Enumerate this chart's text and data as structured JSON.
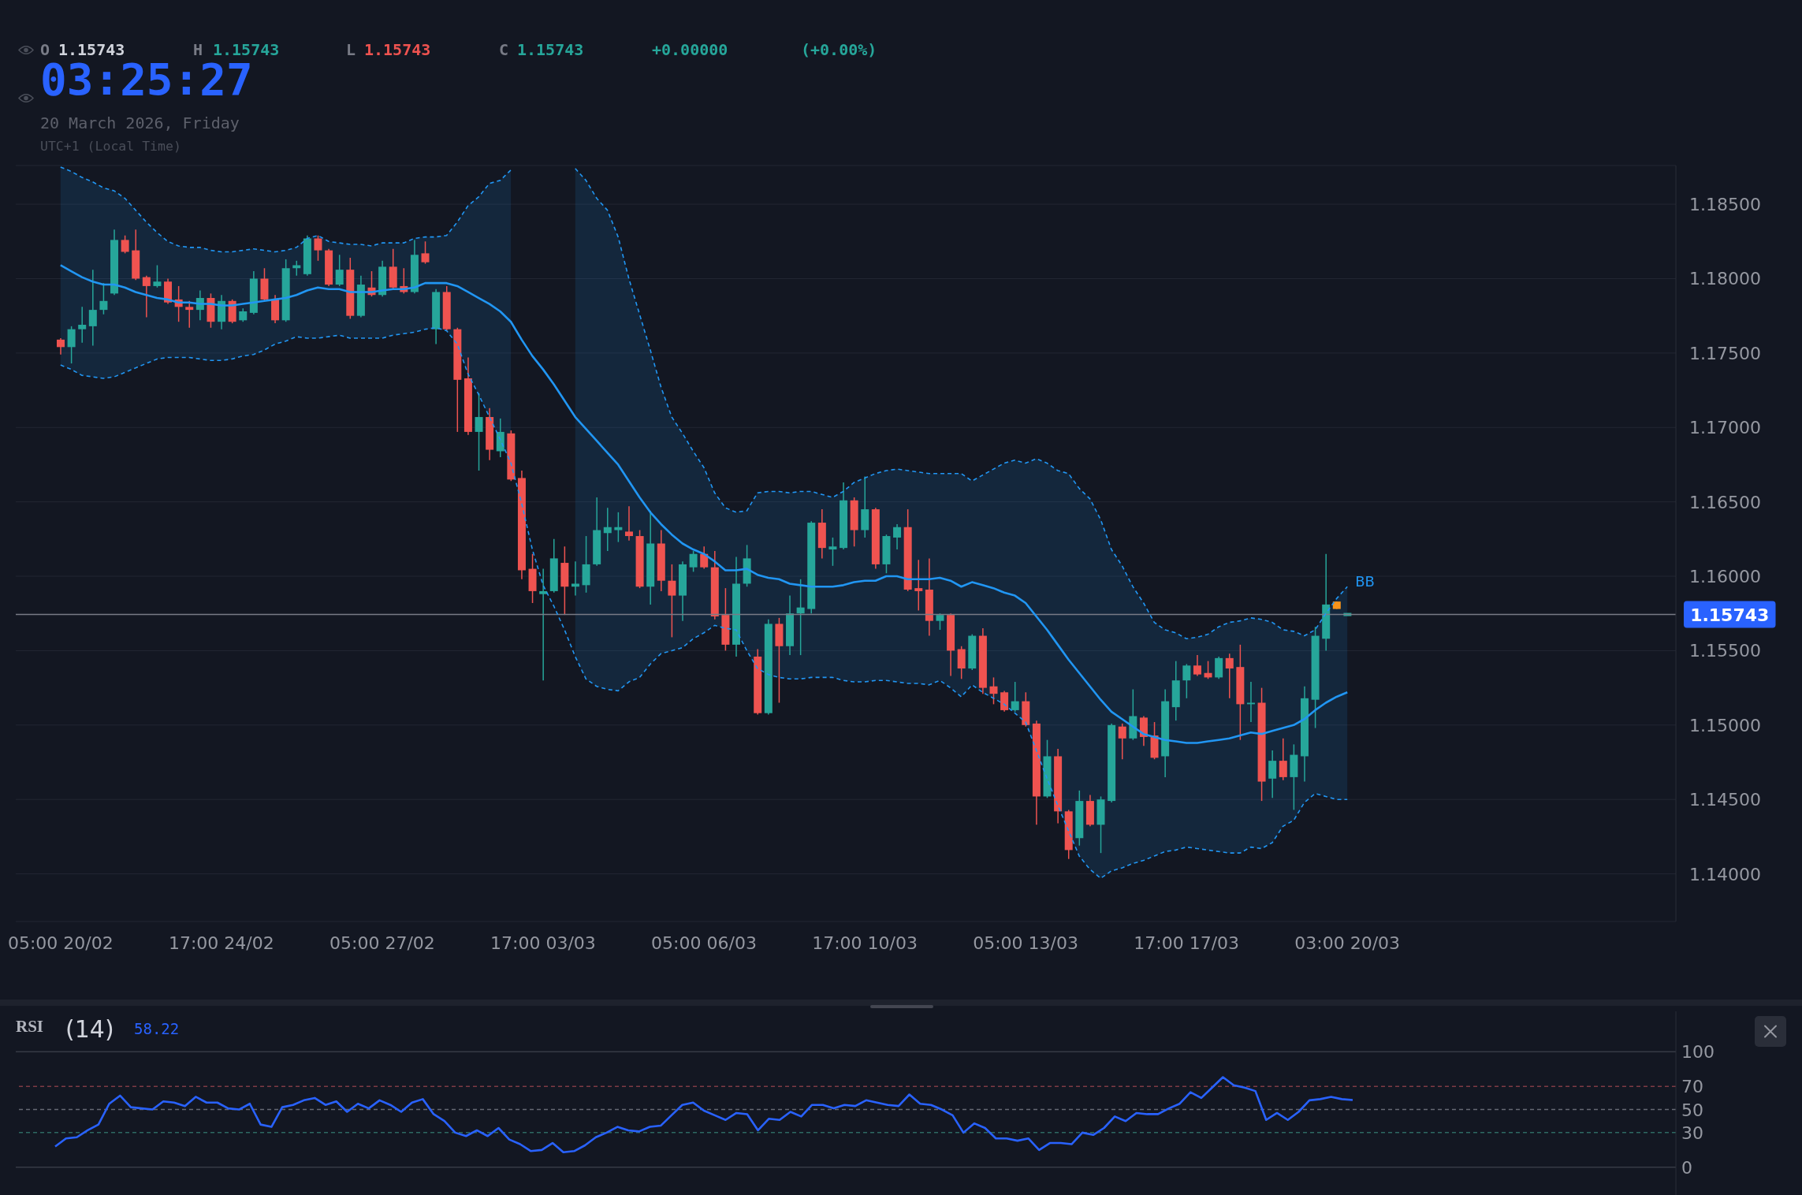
{
  "chart_data": [
    {
      "type": "candlestick",
      "categories": [
        "05:00 20/02",
        null,
        null,
        null,
        null,
        null,
        null,
        null,
        null,
        null,
        null,
        null,
        null,
        null,
        null,
        "17:00 24/02",
        null,
        null,
        null,
        null,
        null,
        null,
        null,
        null,
        null,
        null,
        null,
        null,
        null,
        null,
        "05:00 27/02",
        null,
        null,
        null,
        null,
        null,
        null,
        null,
        null,
        null,
        null,
        null,
        null,
        null,
        null,
        "17:00 03/03",
        null,
        null,
        null,
        null,
        null,
        null,
        null,
        null,
        null,
        null,
        null,
        null,
        null,
        null,
        "05:00 06/03",
        null,
        null,
        null,
        null,
        null,
        null,
        null,
        null,
        null,
        null,
        null,
        null,
        null,
        null,
        "17:00 10/03",
        null,
        null,
        null,
        null,
        null,
        null,
        null,
        null,
        null,
        null,
        null,
        null,
        null,
        null,
        "05:00 13/03",
        null,
        null,
        null,
        null,
        null,
        null,
        null,
        null,
        null,
        null,
        null,
        null,
        null,
        null,
        "17:00 17/03",
        null,
        null,
        null,
        null,
        null,
        null,
        null,
        null,
        null,
        null,
        null,
        null,
        null,
        null,
        "03:00 20/03"
      ],
      "ohlc": [
        [
          1.1759,
          1.176,
          1.1749,
          1.1754
        ],
        [
          1.1754,
          1.1768,
          1.1743,
          1.1766
        ],
        [
          1.1766,
          1.1781,
          1.1757,
          1.1769
        ],
        [
          1.1768,
          1.1806,
          1.1755,
          1.1779
        ],
        [
          1.1779,
          1.1797,
          1.1776,
          1.1785
        ],
        [
          1.179,
          1.1833,
          1.1789,
          1.1826
        ],
        [
          1.1826,
          1.1829,
          1.1817,
          1.1818
        ],
        [
          1.1819,
          1.1833,
          1.1799,
          1.18
        ],
        [
          1.1801,
          1.1802,
          1.1774,
          1.1795
        ],
        [
          1.1795,
          1.1809,
          1.1794,
          1.1798
        ],
        [
          1.1798,
          1.18,
          1.1783,
          1.1784
        ],
        [
          1.1786,
          1.1795,
          1.1771,
          1.1781
        ],
        [
          1.1781,
          1.1785,
          1.1767,
          1.1779
        ],
        [
          1.1779,
          1.1792,
          1.1772,
          1.1787
        ],
        [
          1.1787,
          1.179,
          1.1767,
          1.1771
        ],
        [
          1.1771,
          1.1789,
          1.1766,
          1.1785
        ],
        [
          1.1785,
          1.1786,
          1.177,
          1.1771
        ],
        [
          1.1772,
          1.178,
          1.1771,
          1.1778
        ],
        [
          1.1777,
          1.1805,
          1.1776,
          1.18
        ],
        [
          1.18,
          1.1807,
          1.1785,
          1.1786
        ],
        [
          1.1786,
          1.1789,
          1.177,
          1.1772
        ],
        [
          1.1772,
          1.1813,
          1.1771,
          1.1807
        ],
        [
          1.1807,
          1.1812,
          1.1802,
          1.1809
        ],
        [
          1.1803,
          1.1829,
          1.1802,
          1.1827
        ],
        [
          1.1827,
          1.1829,
          1.1812,
          1.1819
        ],
        [
          1.1819,
          1.182,
          1.1795,
          1.1796
        ],
        [
          1.1796,
          1.1816,
          1.1795,
          1.1806
        ],
        [
          1.1806,
          1.1814,
          1.1773,
          1.1775
        ],
        [
          1.1775,
          1.1802,
          1.1774,
          1.1796
        ],
        [
          1.1794,
          1.1805,
          1.1788,
          1.1789
        ],
        [
          1.1789,
          1.1812,
          1.1788,
          1.1808
        ],
        [
          1.1808,
          1.182,
          1.1793,
          1.1794
        ],
        [
          1.1795,
          1.1807,
          1.179,
          1.1791
        ],
        [
          1.1791,
          1.1826,
          1.179,
          1.1816
        ],
        [
          1.1817,
          1.1825,
          1.181,
          1.1811
        ],
        [
          1.1766,
          1.1793,
          1.1756,
          1.1791
        ],
        [
          1.1791,
          1.1795,
          1.1765,
          1.1766
        ],
        [
          1.1766,
          1.1767,
          1.1697,
          1.1732
        ],
        [
          1.1733,
          1.1747,
          1.1695,
          1.1697
        ],
        [
          1.1697,
          1.1723,
          1.1671,
          1.1707
        ],
        [
          1.1707,
          1.1713,
          1.1678,
          1.1685
        ],
        [
          1.1684,
          1.1706,
          1.168,
          1.1697
        ],
        [
          1.1696,
          1.1698,
          1.1664,
          1.1665
        ],
        [
          1.1666,
          1.1671,
          1.1598,
          1.1604
        ],
        [
          1.1605,
          1.1615,
          1.1582,
          1.159
        ],
        [
          1.1588,
          1.1605,
          1.153,
          1.159
        ],
        [
          1.159,
          1.1625,
          1.1589,
          1.1612
        ],
        [
          1.1609,
          1.162,
          1.1574,
          1.1593
        ],
        [
          1.1593,
          1.161,
          1.1587,
          1.1595
        ],
        [
          1.1594,
          1.1627,
          1.1589,
          1.1608
        ],
        [
          1.1608,
          1.1653,
          1.1607,
          1.1631
        ],
        [
          1.1629,
          1.1646,
          1.1617,
          1.1633
        ],
        [
          1.1631,
          1.1643,
          1.1623,
          1.1633
        ],
        [
          1.163,
          1.1647,
          1.1624,
          1.1627
        ],
        [
          1.1627,
          1.1631,
          1.1592,
          1.1593
        ],
        [
          1.1593,
          1.1644,
          1.1581,
          1.1622
        ],
        [
          1.1622,
          1.1631,
          1.159,
          1.1597
        ],
        [
          1.1597,
          1.1608,
          1.1559,
          1.1587
        ],
        [
          1.1587,
          1.161,
          1.157,
          1.1608
        ],
        [
          1.1606,
          1.1617,
          1.1603,
          1.1615
        ],
        [
          1.1615,
          1.162,
          1.1605,
          1.1606
        ],
        [
          1.1606,
          1.1617,
          1.1571,
          1.1573
        ],
        [
          1.1574,
          1.1592,
          1.155,
          1.1554
        ],
        [
          1.1554,
          1.1613,
          1.1546,
          1.1595
        ],
        [
          1.1595,
          1.1621,
          1.1593,
          1.1612
        ],
        [
          1.1546,
          1.1551,
          1.1507,
          1.1508
        ],
        [
          1.1508,
          1.1571,
          1.1507,
          1.1568
        ],
        [
          1.1568,
          1.1572,
          1.1515,
          1.1553
        ],
        [
          1.1553,
          1.1587,
          1.1547,
          1.1575
        ],
        [
          1.1575,
          1.1598,
          1.1547,
          1.1579
        ],
        [
          1.1578,
          1.1637,
          1.1575,
          1.1636
        ],
        [
          1.1636,
          1.1645,
          1.1612,
          1.1619
        ],
        [
          1.1618,
          1.1626,
          1.1607,
          1.162
        ],
        [
          1.1619,
          1.1663,
          1.1618,
          1.1651
        ],
        [
          1.1651,
          1.1653,
          1.162,
          1.1631
        ],
        [
          1.1631,
          1.1667,
          1.1626,
          1.1645
        ],
        [
          1.1645,
          1.1646,
          1.1605,
          1.1608
        ],
        [
          1.1608,
          1.1628,
          1.1602,
          1.1627
        ],
        [
          1.1626,
          1.1635,
          1.1618,
          1.1633
        ],
        [
          1.1633,
          1.1645,
          1.159,
          1.1591
        ],
        [
          1.1592,
          1.1611,
          1.1577,
          1.159
        ],
        [
          1.1591,
          1.1612,
          1.156,
          1.157
        ],
        [
          1.157,
          1.1575,
          1.1564,
          1.1574
        ],
        [
          1.1574,
          1.1575,
          1.1533,
          1.155
        ],
        [
          1.1551,
          1.1553,
          1.1531,
          1.1538
        ],
        [
          1.1538,
          1.1561,
          1.1537,
          1.156
        ],
        [
          1.156,
          1.1565,
          1.1521,
          1.1525
        ],
        [
          1.1526,
          1.1532,
          1.1514,
          1.1521
        ],
        [
          1.1522,
          1.1523,
          1.1509,
          1.151
        ],
        [
          1.151,
          1.1529,
          1.1509,
          1.1516
        ],
        [
          1.1516,
          1.1522,
          1.1499,
          1.15
        ],
        [
          1.1501,
          1.1503,
          1.1433,
          1.1452
        ],
        [
          1.1452,
          1.149,
          1.1451,
          1.1479
        ],
        [
          1.1479,
          1.1484,
          1.1434,
          1.1442
        ],
        [
          1.1442,
          1.1443,
          1.141,
          1.1416
        ],
        [
          1.1424,
          1.1456,
          1.1419,
          1.1449
        ],
        [
          1.1449,
          1.1453,
          1.1432,
          1.1433
        ],
        [
          1.1433,
          1.1452,
          1.1414,
          1.145
        ],
        [
          1.1449,
          1.1501,
          1.1448,
          1.15
        ],
        [
          1.1499,
          1.1501,
          1.1477,
          1.1491
        ],
        [
          1.1491,
          1.1524,
          1.149,
          1.1506
        ],
        [
          1.1505,
          1.1506,
          1.1486,
          1.1492
        ],
        [
          1.1493,
          1.1502,
          1.1477,
          1.1478
        ],
        [
          1.1479,
          1.1524,
          1.1465,
          1.1516
        ],
        [
          1.1512,
          1.1543,
          1.1503,
          1.153
        ],
        [
          1.153,
          1.1541,
          1.1518,
          1.154
        ],
        [
          1.154,
          1.1547,
          1.1533,
          1.1534
        ],
        [
          1.1535,
          1.1543,
          1.1531,
          1.1532
        ],
        [
          1.1532,
          1.1546,
          1.1531,
          1.1545
        ],
        [
          1.1545,
          1.1548,
          1.1518,
          1.1538
        ],
        [
          1.1539,
          1.1554,
          1.149,
          1.1514
        ],
        [
          1.1514,
          1.1529,
          1.1502,
          1.1515
        ],
        [
          1.1515,
          1.1525,
          1.1449,
          1.1462
        ],
        [
          1.1464,
          1.1483,
          1.1451,
          1.1476
        ],
        [
          1.1476,
          1.1491,
          1.1463,
          1.1465
        ],
        [
          1.1465,
          1.1487,
          1.1443,
          1.148
        ],
        [
          1.1479,
          1.1526,
          1.1462,
          1.1518
        ],
        [
          1.1517,
          1.1566,
          1.1498,
          1.156
        ],
        [
          1.1558,
          1.1615,
          1.155,
          1.1581
        ],
        [
          1.1583,
          1.1583,
          1.1578,
          1.1578
        ],
        [
          1.15743,
          1.15743,
          1.15743,
          1.15743
        ]
      ],
      "colors": [
        "#ef5350",
        "#26a69a",
        "#26a69a",
        "#26a69a",
        "#26a69a",
        "#26a69a",
        "#ef5350",
        "#ef5350",
        "#ef5350",
        "#26a69a",
        "#ef5350",
        "#ef5350",
        "#ef5350",
        "#26a69a",
        "#ef5350",
        "#26a69a",
        "#ef5350",
        "#26a69a",
        "#26a69a",
        "#ef5350",
        "#ef5350",
        "#26a69a",
        "#26a69a",
        "#26a69a",
        "#ef5350",
        "#ef5350",
        "#26a69a",
        "#ef5350",
        "#26a69a",
        "#ef5350",
        "#26a69a",
        "#ef5350",
        "#ef5350",
        "#26a69a",
        "#ef5350",
        "#26a69a",
        "#ef5350",
        "#ef5350",
        "#ef5350",
        "#26a69a",
        "#ef5350",
        "#26a69a",
        "#ef5350",
        "#ef5350",
        "#ef5350",
        "#26a69a",
        "#26a69a",
        "#ef5350",
        "#26a69a",
        "#26a69a",
        "#26a69a",
        "#26a69a",
        "#26a69a",
        "#ef5350",
        "#ef5350",
        "#26a69a",
        "#ef5350",
        "#ef5350",
        "#26a69a",
        "#26a69a",
        "#ef5350",
        "#ef5350",
        "#ef5350",
        "#26a69a",
        "#26a69a",
        "#ef5350",
        "#26a69a",
        "#ef5350",
        "#26a69a",
        "#26a69a",
        "#26a69a",
        "#ef5350",
        "#26a69a",
        "#26a69a",
        "#ef5350",
        "#26a69a",
        "#ef5350",
        "#26a69a",
        "#26a69a",
        "#ef5350",
        "#ef5350",
        "#ef5350",
        "#26a69a",
        "#ef5350",
        "#ef5350",
        "#26a69a",
        "#ef5350",
        "#ef5350",
        "#ef5350",
        "#26a69a",
        "#ef5350",
        "#ef5350",
        "#26a69a",
        "#ef5350",
        "#ef5350",
        "#26a69a",
        "#ef5350",
        "#26a69a",
        "#26a69a",
        "#ef5350",
        "#26a69a",
        "#ef5350",
        "#ef5350",
        "#26a69a",
        "#26a69a",
        "#26a69a",
        "#ef5350",
        "#ef5350",
        "#26a69a",
        "#ef5350",
        "#ef5350",
        "#26a69a",
        "#ef5350",
        "#26a69a",
        "#ef5350",
        "#26a69a",
        "#26a69a",
        "#26a69a",
        "#26a69a",
        "#f7931a",
        "#26a69a"
      ],
      "series": [
        {
          "type": "line",
          "name": "BB",
          "color": "#2196f3",
          "values": [
            1.1809,
            1.1805,
            1.1801,
            1.1798,
            1.1796,
            1.1796,
            1.1794,
            1.1791,
            1.1789,
            1.1787,
            1.1786,
            1.1784,
            1.1784,
            1.1783,
            1.1783,
            1.1782,
            1.1782,
            1.1783,
            1.1784,
            1.1785,
            1.1786,
            1.1787,
            1.1789,
            1.1792,
            1.1794,
            1.1793,
            1.1793,
            1.1791,
            1.1791,
            1.1791,
            1.1792,
            1.1793,
            1.1793,
            1.1794,
            1.1797,
            1.1797,
            1.1797,
            1.1795,
            1.1791,
            1.1787,
            1.1783,
            1.1778,
            1.1771,
            1.1759,
            1.1748,
            1.1739,
            1.1729,
            1.1718,
            1.1707,
            1.1699,
            1.1691,
            1.1683,
            1.1675,
            1.1664,
            1.1653,
            1.1643,
            1.1635,
            1.1628,
            1.1622,
            1.1618,
            1.1615,
            1.161,
            1.1604,
            1.1604,
            1.1605,
            1.1601,
            1.1599,
            1.1598,
            1.1595,
            1.1594,
            1.1593,
            1.1593,
            1.1593,
            1.1594,
            1.1596,
            1.1597,
            1.1597,
            1.16,
            1.16,
            1.1598,
            1.1598,
            1.1598,
            1.1599,
            1.1597,
            1.1593,
            1.1596,
            1.1594,
            1.1592,
            1.1589,
            1.1587,
            1.1582,
            1.1573,
            1.1564,
            1.1554,
            1.1544,
            1.1535,
            1.1526,
            1.1517,
            1.1509,
            1.1504,
            1.1499,
            1.1494,
            1.1492,
            1.149,
            1.1489,
            1.1488,
            1.1488,
            1.1489,
            1.149,
            1.1491,
            1.1493,
            1.1495,
            1.1494,
            1.1496,
            1.1498,
            1.15,
            1.1504,
            1.151,
            1.1515,
            1.1519,
            1.1522
          ],
          "upper": [
            1.1875,
            1.1872,
            1.1868,
            1.1865,
            1.1861,
            1.1859,
            1.1854,
            1.1846,
            1.1838,
            1.1831,
            1.1825,
            1.1822,
            1.1821,
            1.1821,
            1.1819,
            1.1818,
            1.1818,
            1.1819,
            1.182,
            1.1819,
            1.1818,
            1.1819,
            1.1821,
            1.1827,
            1.1829,
            1.1825,
            1.1824,
            1.1823,
            1.1823,
            1.1822,
            1.1824,
            1.1824,
            1.1824,
            1.1827,
            1.1828,
            1.1828,
            1.1829,
            1.1838,
            1.1849,
            1.1855,
            1.1864,
            1.1866,
            1.1873,
            null,
            null,
            null,
            null,
            null,
            1.1874,
            1.1866,
            1.1854,
            1.1846,
            1.1828,
            1.18,
            1.1776,
            1.1752,
            1.1727,
            1.1707,
            1.1696,
            1.1684,
            1.1673,
            1.1656,
            1.1646,
            1.1643,
            1.1644,
            1.1656,
            1.1657,
            1.1657,
            1.1656,
            1.1657,
            1.1657,
            1.1655,
            1.1653,
            1.1657,
            1.1663,
            1.1666,
            1.1669,
            1.1671,
            1.1672,
            1.1671,
            1.167,
            1.1669,
            1.1669,
            1.1669,
            1.1669,
            1.1664,
            1.1668,
            1.1672,
            1.1676,
            1.1678,
            1.1676,
            1.1679,
            1.1676,
            1.1671,
            1.1669,
            1.1659,
            1.1652,
            1.1638,
            1.1618,
            1.1607,
            1.1593,
            1.1582,
            1.1569,
            1.1564,
            1.1562,
            1.1558,
            1.1559,
            1.1561,
            1.1566,
            1.1569,
            1.157,
            1.1572,
            1.1571,
            1.1569,
            1.1564,
            1.1563,
            1.156,
            1.1564,
            1.1575,
            1.1585,
            1.1593
          ],
          "lower": [
            1.1742,
            1.1739,
            1.1735,
            1.1734,
            1.1733,
            1.1734,
            1.1737,
            1.174,
            1.1743,
            1.1746,
            1.1747,
            1.1747,
            1.1747,
            1.1746,
            1.1745,
            1.1745,
            1.1746,
            1.1748,
            1.1749,
            1.1752,
            1.1756,
            1.1758,
            1.1761,
            1.176,
            1.176,
            1.1761,
            1.1762,
            1.176,
            1.176,
            1.176,
            1.176,
            1.1762,
            1.1763,
            1.1764,
            1.1766,
            1.1767,
            1.1765,
            1.1756,
            1.1736,
            1.1722,
            1.1707,
            1.1692,
            1.1676,
            null,
            null,
            null,
            null,
            null,
            1.1546,
            1.1531,
            1.1526,
            1.1524,
            1.1523,
            1.1529,
            1.1532,
            1.1541,
            1.1548,
            1.155,
            1.1552,
            1.1558,
            1.1562,
            1.1567,
            1.1565,
            1.1564,
            1.155,
            1.1538,
            1.1534,
            1.1532,
            1.1531,
            1.1531,
            1.1532,
            1.1532,
            1.1532,
            1.153,
            1.1529,
            1.1529,
            1.153,
            1.153,
            1.1529,
            1.1528,
            1.1528,
            1.1527,
            1.153,
            1.1525,
            1.1519,
            1.1527,
            1.1522,
            1.1518,
            1.1514,
            1.1508,
            1.1502,
            1.1483,
            1.1464,
            1.1446,
            1.1429,
            1.1412,
            1.1403,
            1.1397,
            1.1402,
            1.1404,
            1.1407,
            1.1409,
            1.1412,
            1.1415,
            1.1416,
            1.1418,
            1.1417,
            1.1416,
            1.1415,
            1.1414,
            1.1414,
            1.1418,
            1.1417,
            1.1421,
            1.1432,
            1.1436,
            1.1448,
            1.1454,
            1.1452,
            1.145,
            1.145
          ]
        },
        {
          "type": "line",
          "color": "#2196f3",
          "line_style": "dashed",
          "values": [
            1.1875,
            1.1872,
            1.1868,
            1.1865,
            1.1861,
            1.1859,
            1.1854,
            1.1846,
            1.1838,
            1.1831,
            1.1825,
            1.1822,
            1.1821,
            1.1821,
            1.1819,
            1.1818,
            1.1818,
            1.1819,
            1.182,
            1.1819,
            1.1818,
            1.1819,
            1.1821,
            1.1827,
            1.1829,
            1.1825,
            1.1824,
            1.1823,
            1.1823,
            1.1822,
            1.1824,
            1.1824,
            1.1824,
            1.1827,
            1.1828,
            1.1828,
            1.1829,
            1.1838,
            1.1849,
            1.1855,
            1.1864,
            1.1866,
            1.1873,
            null,
            null,
            null,
            null,
            null,
            1.1874,
            1.1866,
            1.1854,
            1.1846,
            1.1828,
            1.18,
            1.1776,
            1.1752,
            1.1727,
            1.1707,
            1.1696,
            1.1684,
            1.1673,
            1.1656,
            1.1646,
            1.1643,
            1.1644,
            1.1656,
            1.1657,
            1.1657,
            1.1656,
            1.1657,
            1.1657,
            1.1655,
            1.1653,
            1.1657,
            1.1663,
            1.1666,
            1.1669,
            1.1671,
            1.1672,
            1.1671,
            1.167,
            1.1669,
            1.1669,
            1.1669,
            1.1669,
            1.1664,
            1.1668,
            1.1672,
            1.1676,
            1.1678,
            1.1676,
            1.1679,
            1.1676,
            1.1671,
            1.1669,
            1.1659,
            1.1652,
            1.1638,
            1.1618,
            1.1607,
            1.1593,
            1.1582,
            1.1569,
            1.1564,
            1.1562,
            1.1558,
            1.1559,
            1.1561,
            1.1566,
            1.1569,
            1.157,
            1.1572,
            1.1571,
            1.1569,
            1.1564,
            1.1563,
            1.156,
            1.1564,
            1.1575,
            1.1585,
            1.1593
          ]
        },
        {
          "type": "line",
          "color": "#2196f3",
          "line_style": "dashed",
          "values": [
            1.1742,
            1.1739,
            1.1735,
            1.1734,
            1.1733,
            1.1734,
            1.1737,
            1.174,
            1.1743,
            1.1746,
            1.1747,
            1.1747,
            1.1747,
            1.1746,
            1.1745,
            1.1745,
            1.1746,
            1.1748,
            1.1749,
            1.1752,
            1.1756,
            1.1758,
            1.1761,
            1.176,
            1.176,
            1.1761,
            1.1762,
            1.176,
            1.176,
            1.176,
            1.176,
            1.1762,
            1.1763,
            1.1764,
            1.1766,
            1.1767,
            1.1765,
            1.1756,
            1.1736,
            1.1722,
            1.1707,
            1.1692,
            1.1676,
            1.1649,
            1.1618,
            1.1594,
            1.158,
            1.1564,
            1.1546,
            1.1531,
            1.1526,
            1.1524,
            1.1523,
            1.1529,
            1.1532,
            1.1541,
            1.1548,
            1.155,
            1.1552,
            1.1558,
            1.1562,
            1.1567,
            1.1565,
            1.1564,
            1.155,
            1.1538,
            1.1534,
            1.1532,
            1.1531,
            1.1531,
            1.1532,
            1.1532,
            1.1532,
            1.153,
            1.1529,
            1.1529,
            1.153,
            1.153,
            1.1529,
            1.1528,
            1.1528,
            1.1527,
            1.153,
            1.1525,
            1.1519,
            1.1527,
            1.1522,
            1.1518,
            1.1514,
            1.1508,
            1.1502,
            1.1483,
            1.1464,
            1.1446,
            1.1429,
            1.1412,
            1.1403,
            1.1397,
            1.1402,
            1.1404,
            1.1407,
            1.1409,
            1.1412,
            1.1415,
            1.1416,
            1.1418,
            1.1417,
            1.1416,
            1.1415,
            1.1414,
            1.1414,
            1.1418,
            1.1417,
            1.1421,
            1.1432,
            1.1436,
            1.1448,
            1.1454,
            1.1452,
            1.145,
            1.145
          ]
        }
      ],
      "ylim": [
        1.1368,
        1.1876
      ],
      "yticks": [
        {
          "value": 1.14,
          "label": "1.14000"
        },
        {
          "value": 1.145,
          "label": "1.14500"
        },
        {
          "value": 1.15,
          "label": "1.15000"
        },
        {
          "value": 1.155,
          "label": "1.15500"
        },
        {
          "value": 1.16,
          "label": "1.16000"
        },
        {
          "value": 1.165,
          "label": "1.16500"
        },
        {
          "value": 1.17,
          "label": "1.17000"
        },
        {
          "value": 1.175,
          "label": "1.17500"
        },
        {
          "value": 1.18,
          "label": "1.18000"
        },
        {
          "value": 1.185,
          "label": "1.18500"
        }
      ],
      "grid": "y",
      "ref_lines": [
        {
          "axis": "y",
          "value": 1.15743,
          "label": "1.15743",
          "color": "#787b86",
          "line_style": "solid"
        }
      ],
      "annotations": [
        "O",
        "1.15743",
        "H",
        "1.15743",
        "L",
        "1.15743",
        "C",
        "1.15743",
        "+0.00000",
        "(+0.00%)",
        "03:25:27",
        "20 March 2026, Friday",
        "UTC+1 (Local Time)"
      ]
    },
    {
      "type": "line",
      "title": "RSI",
      "subtitle": "(14)",
      "annotations": [
        "58.22"
      ],
      "categories": [
        null,
        null,
        null,
        null,
        null,
        null,
        null,
        null,
        null,
        null,
        null,
        null,
        null,
        null,
        null,
        null,
        null,
        null,
        null,
        null,
        null,
        null,
        null,
        null,
        null,
        null,
        null,
        null,
        null,
        null,
        null,
        null,
        null,
        null,
        null,
        null,
        null,
        null,
        null,
        null,
        null,
        null,
        null,
        null,
        null,
        null,
        null,
        null,
        null,
        null,
        null,
        null,
        null,
        null,
        null,
        null,
        null,
        null,
        null,
        null,
        null,
        null,
        null,
        null,
        null,
        null,
        null,
        null,
        null,
        null,
        null,
        null,
        null,
        null,
        null,
        null,
        null,
        null,
        null,
        null,
        null,
        null,
        null,
        null,
        null,
        null,
        null,
        null,
        null,
        null,
        null,
        null,
        null,
        null,
        null,
        null,
        null,
        null,
        null,
        null,
        null,
        null,
        null,
        null,
        null,
        null,
        null,
        null,
        null,
        null,
        null,
        null,
        null,
        null,
        null,
        null,
        null,
        null,
        null,
        null,
        null
      ],
      "values": [
        18,
        25,
        26,
        32,
        37,
        55,
        62,
        52,
        51,
        50,
        57,
        56,
        53,
        61,
        56,
        56,
        51,
        50,
        55,
        37,
        35,
        52,
        54,
        58,
        60,
        54,
        57,
        48,
        55,
        51,
        58,
        54,
        48,
        56,
        59,
        46,
        40,
        30,
        27,
        32,
        27,
        34,
        24,
        20,
        14,
        15,
        21,
        13,
        14,
        19,
        26,
        30,
        35,
        32,
        31,
        35,
        36,
        45,
        54,
        56,
        49,
        45,
        41,
        47,
        46,
        32,
        42,
        41,
        48,
        44,
        54,
        54,
        51,
        54,
        53,
        58,
        56,
        54,
        53,
        63,
        55,
        54,
        50,
        45,
        30,
        38,
        34,
        25,
        25,
        23,
        25,
        15,
        21,
        21,
        20,
        30,
        28,
        34,
        44,
        40,
        47,
        46,
        46,
        51,
        55,
        65,
        60,
        69,
        78,
        71,
        69,
        66,
        41,
        47,
        41,
        48,
        58,
        59,
        61,
        59,
        58.22
      ],
      "color": "#2962ff",
      "ylim": [
        -24,
        135
      ],
      "yticks": [
        0,
        30,
        50,
        70,
        100
      ],
      "tick_labels": "y",
      "ref_lines": [
        {
          "axis": "y",
          "value": 100,
          "color": "#363a45",
          "line_style": "solid"
        },
        {
          "axis": "y",
          "value": 70,
          "color": "#7e3b45",
          "line_style": "dashed"
        },
        {
          "axis": "y",
          "value": 50,
          "color": "#666974",
          "line_style": "dashed"
        },
        {
          "axis": "y",
          "value": 30,
          "color": "#2e6a62",
          "line_style": "dashed"
        },
        {
          "axis": "y",
          "value": 0,
          "color": "#363a45",
          "line_style": "solid"
        }
      ]
    }
  ]
}
